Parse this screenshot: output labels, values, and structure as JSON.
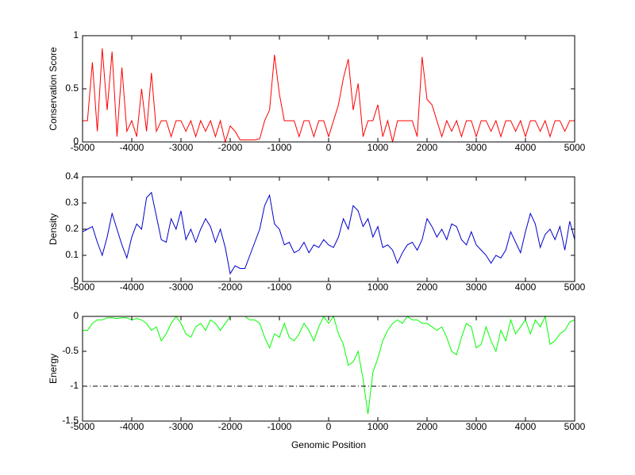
{
  "chart_data": [
    {
      "type": "line",
      "ylabel": "Conservation Score",
      "color": "#ff0000",
      "xlim": [
        -5000,
        5000
      ],
      "xticks": [
        -5000,
        -4000,
        -3000,
        -2000,
        -1000,
        0,
        1000,
        2000,
        3000,
        4000,
        5000
      ],
      "ylim": [
        0,
        1
      ],
      "yticks": [
        0,
        0.5,
        1
      ],
      "x": [
        -5000,
        -4900,
        -4800,
        -4700,
        -4600,
        -4500,
        -4400,
        -4300,
        -4200,
        -4100,
        -4000,
        -3900,
        -3800,
        -3700,
        -3600,
        -3500,
        -3400,
        -3300,
        -3200,
        -3100,
        -3000,
        -2900,
        -2800,
        -2700,
        -2600,
        -2500,
        -2400,
        -2300,
        -2200,
        -2100,
        -2000,
        -1900,
        -1800,
        -1700,
        -1600,
        -1500,
        -1400,
        -1300,
        -1200,
        -1100,
        -1000,
        -900,
        -800,
        -700,
        -600,
        -500,
        -400,
        -300,
        -200,
        -100,
        0,
        100,
        200,
        300,
        400,
        500,
        600,
        700,
        800,
        900,
        1000,
        1100,
        1200,
        1300,
        1400,
        1500,
        1600,
        1700,
        1800,
        1900,
        2000,
        2100,
        2200,
        2300,
        2400,
        2500,
        2600,
        2700,
        2800,
        2900,
        3000,
        3100,
        3200,
        3300,
        3400,
        3500,
        3600,
        3700,
        3800,
        3900,
        4000,
        4100,
        4200,
        4300,
        4400,
        4500,
        4600,
        4700,
        4800,
        4900,
        5000
      ],
      "values": [
        0.2,
        0.2,
        0.75,
        0.1,
        0.88,
        0.3,
        0.85,
        0.05,
        0.7,
        0.1,
        0.2,
        0.05,
        0.5,
        0.1,
        0.65,
        0.1,
        0.2,
        0.2,
        0.05,
        0.2,
        0.2,
        0.1,
        0.2,
        0.05,
        0.2,
        0.1,
        0.2,
        0.05,
        0.2,
        0,
        0.15,
        0.1,
        0.02,
        0.02,
        0.02,
        0.02,
        0.03,
        0.2,
        0.3,
        0.82,
        0.45,
        0.2,
        0.2,
        0.2,
        0.05,
        0.2,
        0.2,
        0.05,
        0.2,
        0.2,
        0.05,
        0.2,
        0.35,
        0.6,
        0.78,
        0.3,
        0.55,
        0.05,
        0.2,
        0.2,
        0.35,
        0.05,
        0.2,
        0,
        0.2,
        0.2,
        0.2,
        0.2,
        0.05,
        0.8,
        0.4,
        0.35,
        0.2,
        0.05,
        0.2,
        0.1,
        0.2,
        0.05,
        0.2,
        0.2,
        0.05,
        0.2,
        0.2,
        0.1,
        0.2,
        0.05,
        0.2,
        0.2,
        0.1,
        0.2,
        0.05,
        0.2,
        0.2,
        0.1,
        0.2,
        0.05,
        0.2,
        0.2,
        0.1,
        0.2,
        0.2
      ]
    },
    {
      "type": "line",
      "ylabel": "Density",
      "color": "#0000cc",
      "xlim": [
        -5000,
        5000
      ],
      "xticks": [
        -5000,
        -4000,
        -3000,
        -2000,
        -1000,
        0,
        1000,
        2000,
        3000,
        4000,
        5000
      ],
      "ylim": [
        0,
        0.4
      ],
      "yticks": [
        0,
        0.1,
        0.2,
        0.3,
        0.4
      ],
      "x": [
        -5000,
        -4900,
        -4800,
        -4700,
        -4600,
        -4500,
        -4400,
        -4300,
        -4200,
        -4100,
        -4000,
        -3900,
        -3800,
        -3700,
        -3600,
        -3500,
        -3400,
        -3300,
        -3200,
        -3100,
        -3000,
        -2900,
        -2800,
        -2700,
        -2600,
        -2500,
        -2400,
        -2300,
        -2200,
        -2100,
        -2000,
        -1900,
        -1800,
        -1700,
        -1600,
        -1500,
        -1400,
        -1300,
        -1200,
        -1100,
        -1000,
        -900,
        -800,
        -700,
        -600,
        -500,
        -400,
        -300,
        -200,
        -100,
        0,
        100,
        200,
        300,
        400,
        500,
        600,
        700,
        800,
        900,
        1000,
        1100,
        1200,
        1300,
        1400,
        1500,
        1600,
        1700,
        1800,
        1900,
        2000,
        2100,
        2200,
        2300,
        2400,
        2500,
        2600,
        2700,
        2800,
        2900,
        3000,
        3100,
        3200,
        3300,
        3400,
        3500,
        3600,
        3700,
        3800,
        3900,
        4000,
        4100,
        4200,
        4300,
        4400,
        4500,
        4600,
        4700,
        4800,
        4900,
        5000
      ],
      "values": [
        0.19,
        0.2,
        0.21,
        0.15,
        0.1,
        0.17,
        0.26,
        0.2,
        0.14,
        0.09,
        0.17,
        0.22,
        0.2,
        0.32,
        0.34,
        0.25,
        0.16,
        0.15,
        0.24,
        0.2,
        0.27,
        0.16,
        0.2,
        0.15,
        0.2,
        0.24,
        0.21,
        0.15,
        0.2,
        0.13,
        0.03,
        0.06,
        0.05,
        0.05,
        0.1,
        0.15,
        0.2,
        0.29,
        0.33,
        0.22,
        0.2,
        0.14,
        0.15,
        0.11,
        0.12,
        0.15,
        0.11,
        0.14,
        0.13,
        0.16,
        0.14,
        0.13,
        0.17,
        0.24,
        0.2,
        0.29,
        0.27,
        0.21,
        0.24,
        0.17,
        0.21,
        0.13,
        0.14,
        0.12,
        0.07,
        0.11,
        0.14,
        0.15,
        0.12,
        0.16,
        0.24,
        0.21,
        0.17,
        0.2,
        0.16,
        0.22,
        0.21,
        0.16,
        0.14,
        0.19,
        0.14,
        0.12,
        0.1,
        0.07,
        0.1,
        0.09,
        0.12,
        0.19,
        0.15,
        0.11,
        0.19,
        0.26,
        0.22,
        0.13,
        0.18,
        0.2,
        0.16,
        0.21,
        0.12,
        0.23,
        0.16
      ]
    },
    {
      "type": "line",
      "ylabel": "Energy",
      "xlabel": "Genomic Position",
      "color": "#00ff00",
      "xlim": [
        -5000,
        5000
      ],
      "xticks": [
        -5000,
        -4000,
        -3000,
        -2000,
        -1000,
        0,
        1000,
        2000,
        3000,
        4000,
        5000
      ],
      "ylim": [
        -1.5,
        0
      ],
      "yticks": [
        -1.5,
        -1,
        -0.5,
        0
      ],
      "reference_line": -1,
      "x": [
        -5000,
        -4900,
        -4800,
        -4700,
        -4600,
        -4500,
        -4400,
        -4300,
        -4200,
        -4100,
        -4000,
        -3900,
        -3800,
        -3700,
        -3600,
        -3500,
        -3400,
        -3300,
        -3200,
        -3100,
        -3000,
        -2900,
        -2800,
        -2700,
        -2600,
        -2500,
        -2400,
        -2300,
        -2200,
        -2100,
        -2000,
        -1900,
        -1800,
        -1700,
        -1600,
        -1500,
        -1400,
        -1300,
        -1200,
        -1100,
        -1000,
        -900,
        -800,
        -700,
        -600,
        -500,
        -400,
        -300,
        -200,
        -100,
        0,
        100,
        200,
        300,
        400,
        500,
        600,
        700,
        800,
        900,
        1000,
        1100,
        1200,
        1300,
        1400,
        1500,
        1600,
        1700,
        1800,
        1900,
        2000,
        2100,
        2200,
        2300,
        2400,
        2500,
        2600,
        2700,
        2800,
        2900,
        3000,
        3100,
        3200,
        3300,
        3400,
        3500,
        3600,
        3700,
        3800,
        3900,
        4000,
        4100,
        4200,
        4300,
        4400,
        4500,
        4600,
        4700,
        4800,
        4900,
        5000
      ],
      "values": [
        -0.2,
        -0.2,
        -0.1,
        -0.05,
        -0.05,
        -0.02,
        -0.02,
        -0.03,
        -0.02,
        -0.02,
        -0.05,
        -0.03,
        -0.05,
        -0.1,
        -0.2,
        -0.15,
        -0.35,
        -0.25,
        -0.1,
        0,
        -0.1,
        -0.25,
        -0.3,
        -0.15,
        -0.1,
        -0.2,
        -0.05,
        -0.1,
        -0.2,
        -0.1,
        0,
        0,
        0,
        0,
        -0.05,
        -0.05,
        -0.1,
        -0.3,
        -0.45,
        -0.25,
        -0.3,
        -0.1,
        -0.3,
        -0.35,
        -0.25,
        -0.1,
        -0.2,
        -0.35,
        -0.15,
        0,
        -0.1,
        0,
        -0.25,
        -0.4,
        -0.7,
        -0.65,
        -0.5,
        -0.9,
        -1.4,
        -0.8,
        -0.6,
        -0.35,
        -0.2,
        -0.1,
        -0.05,
        -0.1,
        0,
        -0.05,
        -0.05,
        -0.1,
        -0.1,
        -0.15,
        -0.2,
        -0.15,
        -0.3,
        -0.5,
        -0.55,
        -0.3,
        -0.1,
        -0.15,
        -0.45,
        -0.4,
        -0.15,
        -0.35,
        -0.5,
        -0.2,
        -0.35,
        -0.05,
        -0.25,
        -0.15,
        -0.05,
        -0.25,
        -0.05,
        -0.15,
        0,
        -0.4,
        -0.35,
        -0.25,
        -0.2,
        -0.08,
        -0.05
      ]
    }
  ]
}
